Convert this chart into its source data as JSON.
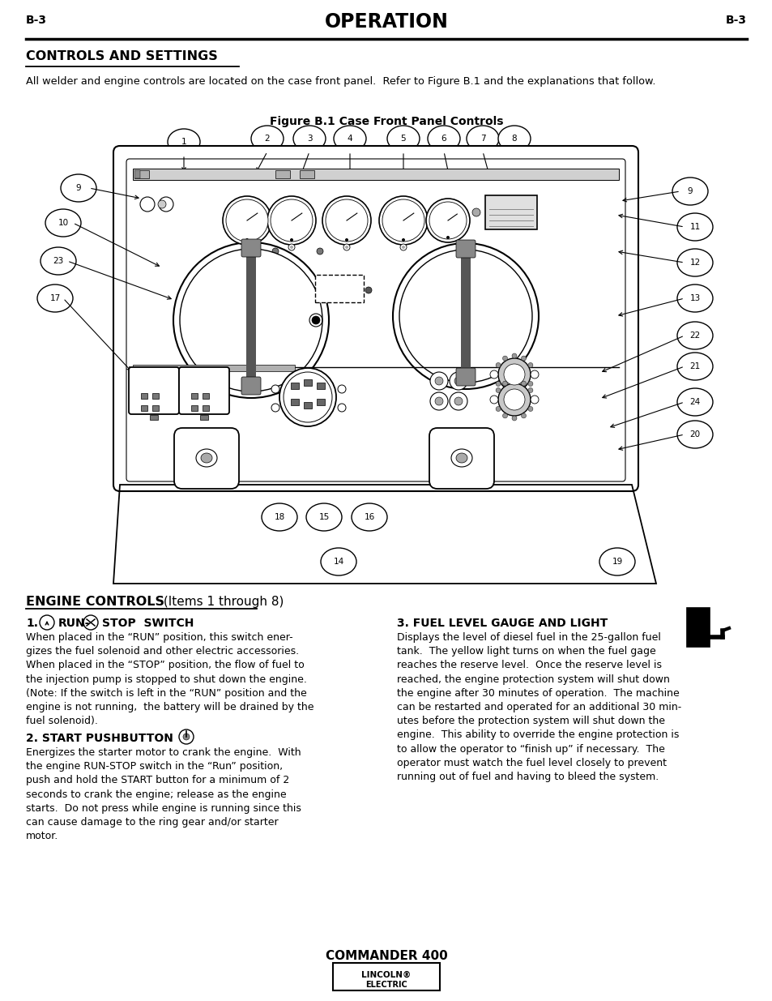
{
  "page_header_left": "B-3",
  "page_header_center": "OPERATION",
  "page_header_right": "B-3",
  "section_title": "CONTROLS AND SETTINGS",
  "intro_text": "All welder and engine controls are located on the case front panel.  Refer to Figure B.1 and the explanations that follow.",
  "figure_caption": "Figure B.1 Case Front Panel Controls",
  "engine_controls_heading": "ENGINE CONTROLS",
  "engine_controls_subheading": " (Items 1 through 8)",
  "item1_heading_prefix": "1.",
  "item1_heading_bold": "RUN-",
  "item1_heading_bold2": "STOP  SWITCH",
  "item1_body": "When placed in the “RUN” position, this switch ener-\ngizes the fuel solenoid and other electric accessories.\nWhen placed in the “STOP” position, the flow of fuel to\nthe injection pump is stopped to shut down the engine.\n(Note: If the switch is left in the “RUN” position and the\nengine is not running,  the battery will be drained by the\nfuel solenoid).",
  "item2_heading": "2. START PUSHBUTTON",
  "item2_body": "Energizes the starter motor to crank the engine.  With\nthe engine RUN-STOP switch in the “Run” position,\npush and hold the START button for a minimum of 2\nseconds to crank the engine; release as the engine\nstarts.  Do not press while engine is running since this\ncan cause damage to the ring gear and/or starter\nmotor.",
  "item3_heading": "3. FUEL LEVEL GAUGE AND LIGHT",
  "item3_body": "Displays the level of diesel fuel in the 25-gallon fuel\ntank.  The yellow light turns on when the fuel gage\nreaches the reserve level.  Once the reserve level is\nreached, the engine protection system will shut down\nthe engine after 30 minutes of operation.  The machine\ncan be restarted and operated for an additional 30 min-\nutes before the protection system will shut down the\nengine.  This ability to override the engine protection is\nto allow the operator to “finish up” if necessary.  The\noperator must watch the fuel level closely to prevent\nrunning out of fuel and having to bleed the system.",
  "footer_model": "COMMANDER 400",
  "bg_color": "#ffffff",
  "text_color": "#000000"
}
